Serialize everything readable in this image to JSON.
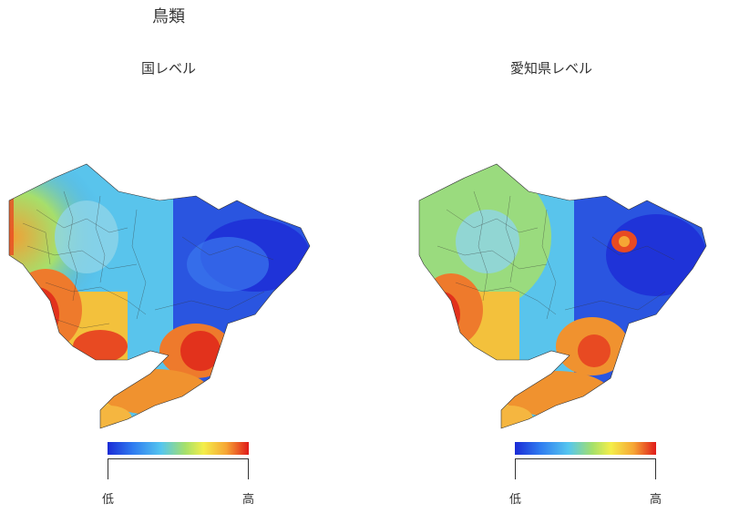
{
  "title": "鳥類",
  "panels": [
    {
      "title": "国レベル",
      "legend": {
        "low": "低",
        "high": "高"
      },
      "colors": {
        "low": "#1a2bd6",
        "mid": "#f4ee4a",
        "high": "#e01a1a"
      }
    },
    {
      "title": "愛知県レベル",
      "legend": {
        "low": "低",
        "high": "高"
      },
      "colors": {
        "low": "#1a2bd6",
        "mid": "#f4ee4a",
        "high": "#e01a1a"
      }
    }
  ]
}
